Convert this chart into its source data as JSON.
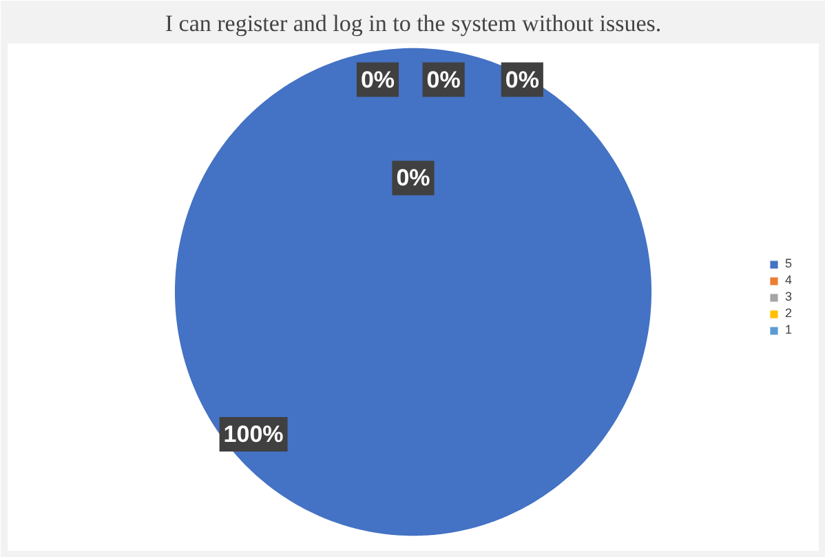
{
  "chart_data": {
    "type": "pie",
    "title": "I can register and log in to the system without issues.",
    "categories": [
      "5",
      "4",
      "3",
      "2",
      "1"
    ],
    "values": [
      100,
      0,
      0,
      0,
      0
    ],
    "colors": [
      "#4472c4",
      "#ed7d31",
      "#a5a5a5",
      "#ffc000",
      "#5b9bd5"
    ],
    "value_labels": [
      "100%",
      "0%",
      "0%",
      "0%",
      "0%"
    ],
    "legend": "right"
  }
}
